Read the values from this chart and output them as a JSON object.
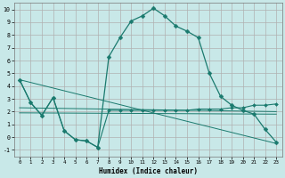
{
  "xlabel": "Humidex (Indice chaleur)",
  "bg_color": "#c8e8e8",
  "grid_color": "#b0b0b0",
  "line_color": "#1a7a6e",
  "curve1_x": [
    0,
    1,
    2,
    3,
    4,
    5,
    6,
    7,
    8,
    9,
    10,
    11,
    12,
    13,
    14,
    15,
    16,
    17,
    18,
    19,
    20,
    21,
    22,
    23
  ],
  "curve1_y": [
    4.5,
    2.7,
    1.7,
    3.1,
    0.5,
    -0.2,
    -0.3,
    -0.8,
    6.3,
    7.8,
    9.1,
    9.5,
    10.1,
    9.5,
    8.7,
    8.3,
    7.8,
    5.0,
    3.2,
    2.5,
    2.1,
    1.8,
    0.6,
    -0.4
  ],
  "curve2_x": [
    0,
    1,
    2,
    3,
    4,
    5,
    6,
    7,
    8,
    9,
    10,
    11,
    12,
    13,
    14,
    15,
    16,
    17,
    18,
    19,
    20,
    21,
    22,
    23
  ],
  "curve2_y": [
    4.5,
    2.7,
    1.7,
    3.1,
    0.5,
    -0.2,
    -0.3,
    -0.8,
    2.1,
    2.1,
    2.1,
    2.1,
    2.1,
    2.1,
    2.1,
    2.1,
    2.2,
    2.2,
    2.2,
    2.3,
    2.3,
    2.5,
    2.5,
    2.6
  ],
  "line3_x": [
    0,
    23
  ],
  "line3_y": [
    4.5,
    -0.5
  ],
  "line4_x": [
    0,
    23
  ],
  "line4_y": [
    2.3,
    2.0
  ],
  "line5_x": [
    0,
    23
  ],
  "line5_y": [
    1.9,
    1.8
  ],
  "xlim": [
    -0.5,
    23.5
  ],
  "ylim": [
    -1.5,
    10.5
  ],
  "yticks": [
    -1,
    0,
    1,
    2,
    3,
    4,
    5,
    6,
    7,
    8,
    9,
    10
  ],
  "xticks": [
    0,
    1,
    2,
    3,
    4,
    5,
    6,
    7,
    8,
    9,
    10,
    11,
    12,
    13,
    14,
    15,
    16,
    17,
    18,
    19,
    20,
    21,
    22,
    23
  ]
}
